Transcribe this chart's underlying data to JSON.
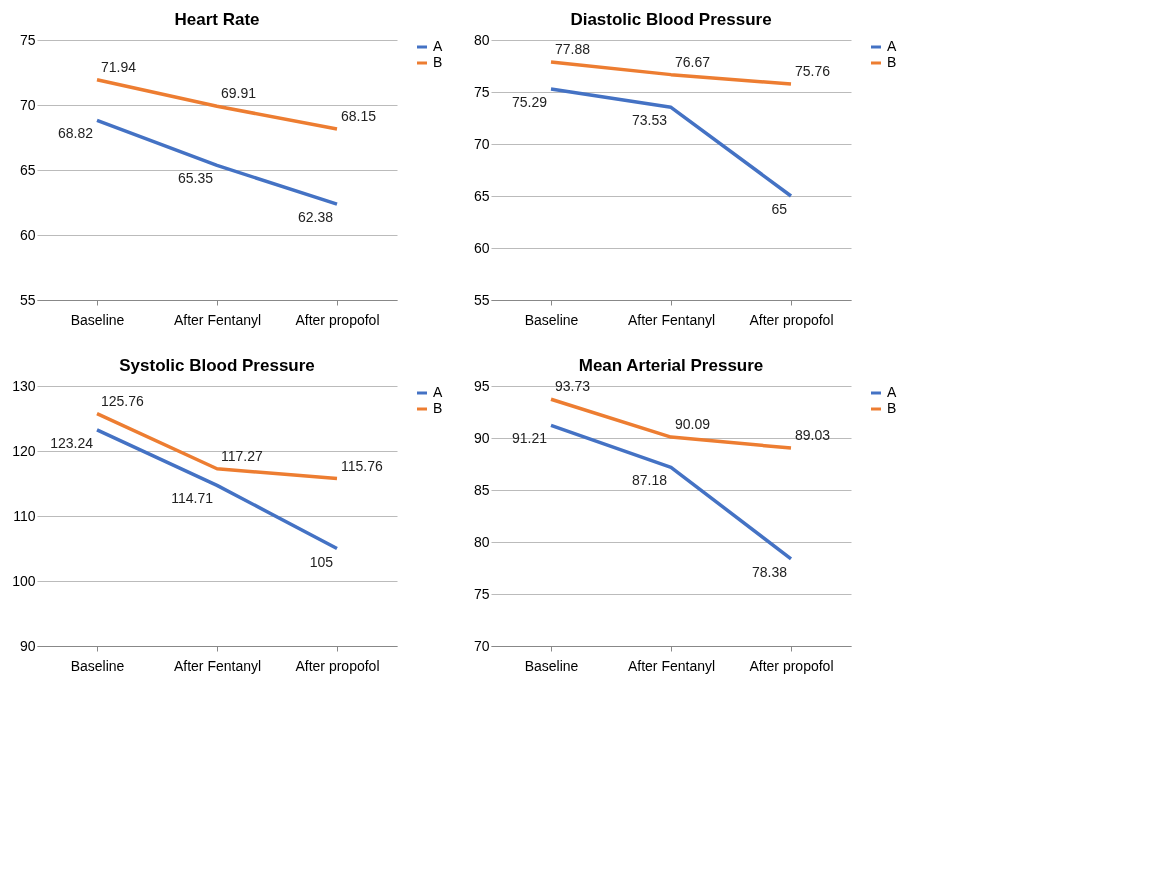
{
  "chart_data": [
    {
      "type": "line",
      "title": "Heart Rate",
      "categories": [
        "Baseline",
        "After Fentanyl",
        "After propofol"
      ],
      "series": [
        {
          "name": "A",
          "color": "#4472c4",
          "values": [
            68.82,
            65.35,
            62.38
          ]
        },
        {
          "name": "B",
          "color": "#ed7d31",
          "values": [
            71.94,
            69.91,
            68.15
          ]
        }
      ],
      "ylim": [
        55,
        75
      ],
      "yticks": [
        55,
        60,
        65,
        70,
        75
      ],
      "grid": "y",
      "legend": "right",
      "data_labels": true
    },
    {
      "type": "line",
      "title": "Diastolic Blood Pressure",
      "categories": [
        "Baseline",
        "After Fentanyl",
        "After propofol"
      ],
      "series": [
        {
          "name": "A",
          "color": "#4472c4",
          "values": [
            75.29,
            73.53,
            65
          ]
        },
        {
          "name": "B",
          "color": "#ed7d31",
          "values": [
            77.88,
            76.67,
            75.76
          ]
        }
      ],
      "ylim": [
        55,
        80
      ],
      "yticks": [
        55,
        60,
        65,
        70,
        75,
        80
      ],
      "grid": "y",
      "legend": "right",
      "data_labels": true
    },
    {
      "type": "line",
      "title": "Systolic Blood Pressure",
      "categories": [
        "Baseline",
        "After Fentanyl",
        "After propofol"
      ],
      "series": [
        {
          "name": "A",
          "color": "#4472c4",
          "values": [
            123.24,
            114.71,
            105
          ]
        },
        {
          "name": "B",
          "color": "#ed7d31",
          "values": [
            125.76,
            117.27,
            115.76
          ]
        }
      ],
      "ylim": [
        90,
        130
      ],
      "yticks": [
        90,
        100,
        110,
        120,
        130
      ],
      "grid": "y",
      "legend": "right",
      "data_labels": true
    },
    {
      "type": "line",
      "title": "Mean Arterial Pressure",
      "categories": [
        "Baseline",
        "After Fentanyl",
        "After propofol"
      ],
      "series": [
        {
          "name": "A",
          "color": "#4472c4",
          "values": [
            91.21,
            87.18,
            78.38
          ]
        },
        {
          "name": "B",
          "color": "#ed7d31",
          "values": [
            93.73,
            90.09,
            89.03
          ]
        }
      ],
      "ylim": [
        70,
        95
      ],
      "yticks": [
        70,
        75,
        80,
        85,
        90,
        95
      ],
      "grid": "y",
      "legend": "right",
      "data_labels": true
    }
  ]
}
